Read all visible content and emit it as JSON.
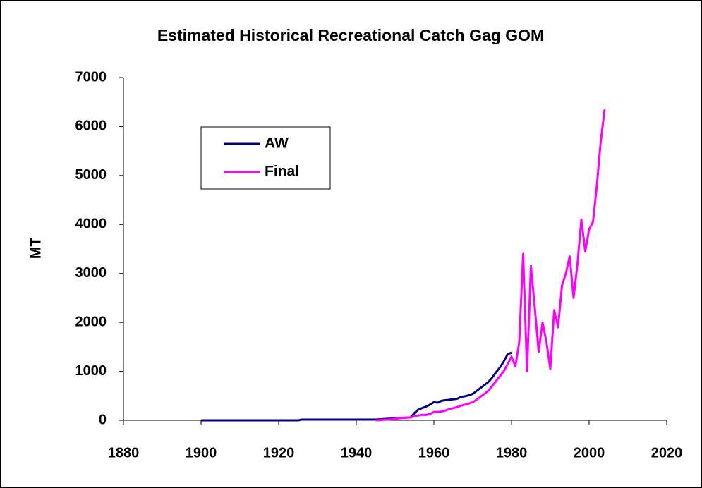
{
  "chart_data": {
    "type": "line",
    "title": "Estimated Historical Recreational Catch Gag GOM",
    "y_label": "MT",
    "x": [
      1900,
      1901,
      1902,
      1903,
      1904,
      1905,
      1906,
      1907,
      1908,
      1909,
      1910,
      1911,
      1912,
      1913,
      1914,
      1915,
      1916,
      1917,
      1918,
      1919,
      1920,
      1921,
      1922,
      1923,
      1924,
      1925,
      1926,
      1927,
      1928,
      1929,
      1930,
      1931,
      1932,
      1933,
      1934,
      1935,
      1936,
      1937,
      1938,
      1939,
      1940,
      1941,
      1942,
      1943,
      1944,
      1945,
      1946,
      1947,
      1948,
      1949,
      1950,
      1951,
      1952,
      1953,
      1954,
      1955,
      1956,
      1957,
      1958,
      1959,
      1960,
      1961,
      1962,
      1963,
      1964,
      1965,
      1966,
      1967,
      1968,
      1969,
      1970,
      1971,
      1972,
      1973,
      1974,
      1975,
      1976,
      1977,
      1978,
      1979,
      1980,
      1981,
      1982,
      1983,
      1984,
      1985,
      1986,
      1987,
      1988,
      1989,
      1990,
      1991,
      1992,
      1993,
      1994,
      1995,
      1996,
      1997,
      1998,
      1999,
      2000,
      2001,
      2002,
      2003,
      2004
    ],
    "series": [
      {
        "name": "AW",
        "color": "#000080",
        "values": [
          0,
          0,
          0,
          0,
          0,
          0,
          0,
          0,
          0,
          0,
          0,
          0,
          0,
          0,
          0,
          0,
          0,
          0,
          0,
          0,
          0,
          0,
          0,
          0,
          0,
          0,
          15,
          15,
          15,
          15,
          15,
          15,
          15,
          15,
          15,
          15,
          15,
          15,
          15,
          15,
          15,
          15,
          15,
          15,
          15,
          15,
          20,
          25,
          30,
          35,
          40,
          45,
          50,
          55,
          60,
          150,
          220,
          250,
          280,
          320,
          370,
          360,
          400,
          410,
          420,
          430,
          440,
          480,
          490,
          510,
          540,
          600,
          660,
          720,
          780,
          870,
          980,
          1080,
          1200,
          1350,
          1380,
          null,
          null,
          null,
          null,
          null,
          null,
          null,
          null,
          null,
          null,
          null,
          null,
          null,
          null,
          null,
          null,
          null,
          null,
          null,
          null,
          null,
          null,
          null,
          null
        ]
      },
      {
        "name": "Final",
        "color": "#ff00ff",
        "values": [
          null,
          null,
          null,
          null,
          null,
          null,
          null,
          null,
          null,
          null,
          null,
          null,
          null,
          null,
          null,
          null,
          null,
          null,
          null,
          null,
          null,
          null,
          null,
          null,
          null,
          null,
          null,
          null,
          null,
          null,
          null,
          null,
          null,
          null,
          null,
          null,
          null,
          null,
          null,
          null,
          null,
          null,
          null,
          null,
          null,
          0,
          5,
          10,
          15,
          20,
          30,
          40,
          50,
          55,
          60,
          80,
          100,
          110,
          110,
          130,
          170,
          170,
          180,
          200,
          230,
          250,
          270,
          300,
          320,
          340,
          370,
          420,
          480,
          540,
          600,
          700,
          800,
          900,
          1000,
          1150,
          1300,
          1100,
          1600,
          3400,
          1000,
          3150,
          2300,
          1400,
          2000,
          1600,
          1050,
          2250,
          1900,
          2750,
          3000,
          3350,
          2500,
          3200,
          4100,
          3450,
          3900,
          4050,
          4800,
          5700,
          6350
        ]
      }
    ],
    "xlim": [
      1880,
      2020
    ],
    "xticks": [
      1880,
      1900,
      1920,
      1940,
      1960,
      1980,
      2000,
      2020
    ],
    "ylim": [
      0,
      7000
    ],
    "yticks": [
      0,
      1000,
      2000,
      3000,
      4000,
      5000,
      6000,
      7000
    ],
    "grid": false,
    "legend": "upper left"
  }
}
